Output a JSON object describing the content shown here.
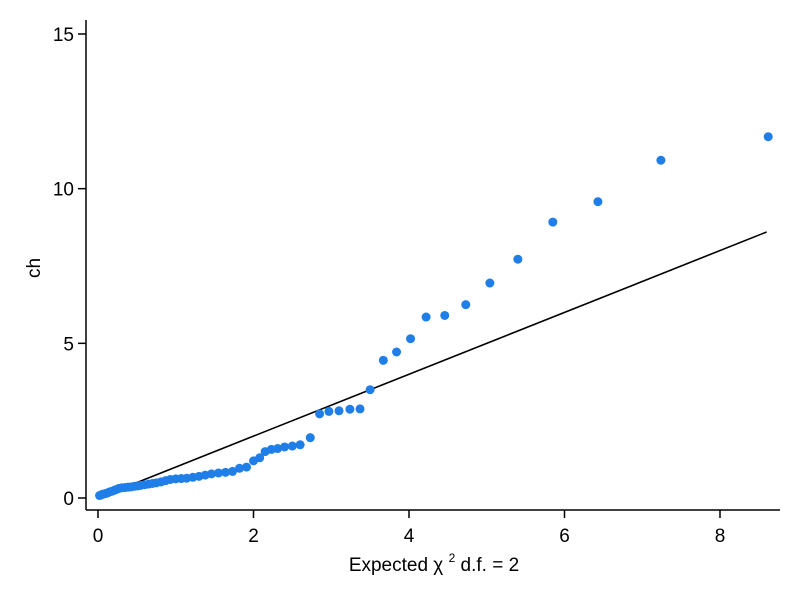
{
  "chart_data": {
    "type": "scatter",
    "title": "",
    "xlabel": "Expected χ",
    "xlabel_superscript": "2",
    "xlabel_suffix": " d.f. = 2",
    "ylabel": "ch",
    "xlim": [
      0,
      8.7
    ],
    "ylim": [
      0,
      15.5
    ],
    "xticks": [
      0,
      2,
      4,
      6,
      8
    ],
    "yticks": [
      0,
      5,
      10,
      15
    ],
    "grid": false,
    "point_color": "#1f7ee8",
    "line_color": "#000000",
    "reference_line": {
      "x": [
        0.02,
        8.6
      ],
      "y": [
        0.02,
        8.6
      ]
    },
    "points": [
      {
        "x": 0.02,
        "y": 0.08
      },
      {
        "x": 0.04,
        "y": 0.1
      },
      {
        "x": 0.06,
        "y": 0.12
      },
      {
        "x": 0.09,
        "y": 0.14
      },
      {
        "x": 0.12,
        "y": 0.16
      },
      {
        "x": 0.15,
        "y": 0.2
      },
      {
        "x": 0.18,
        "y": 0.22
      },
      {
        "x": 0.21,
        "y": 0.25
      },
      {
        "x": 0.24,
        "y": 0.28
      },
      {
        "x": 0.27,
        "y": 0.31
      },
      {
        "x": 0.31,
        "y": 0.33
      },
      {
        "x": 0.35,
        "y": 0.34
      },
      {
        "x": 0.39,
        "y": 0.35
      },
      {
        "x": 0.43,
        "y": 0.36
      },
      {
        "x": 0.47,
        "y": 0.38
      },
      {
        "x": 0.51,
        "y": 0.39
      },
      {
        "x": 0.55,
        "y": 0.41
      },
      {
        "x": 0.6,
        "y": 0.43
      },
      {
        "x": 0.65,
        "y": 0.45
      },
      {
        "x": 0.7,
        "y": 0.47
      },
      {
        "x": 0.75,
        "y": 0.49
      },
      {
        "x": 0.81,
        "y": 0.52
      },
      {
        "x": 0.87,
        "y": 0.56
      },
      {
        "x": 0.93,
        "y": 0.6
      },
      {
        "x": 1.0,
        "y": 0.62
      },
      {
        "x": 1.07,
        "y": 0.63
      },
      {
        "x": 1.14,
        "y": 0.64
      },
      {
        "x": 1.22,
        "y": 0.67
      },
      {
        "x": 1.3,
        "y": 0.7
      },
      {
        "x": 1.38,
        "y": 0.74
      },
      {
        "x": 1.46,
        "y": 0.78
      },
      {
        "x": 1.55,
        "y": 0.81
      },
      {
        "x": 1.64,
        "y": 0.83
      },
      {
        "x": 1.73,
        "y": 0.86
      },
      {
        "x": 1.82,
        "y": 0.96
      },
      {
        "x": 1.91,
        "y": 1.0
      },
      {
        "x": 2.0,
        "y": 1.2
      },
      {
        "x": 2.08,
        "y": 1.3
      },
      {
        "x": 2.15,
        "y": 1.5
      },
      {
        "x": 2.23,
        "y": 1.57
      },
      {
        "x": 2.31,
        "y": 1.6
      },
      {
        "x": 2.4,
        "y": 1.65
      },
      {
        "x": 2.5,
        "y": 1.68
      },
      {
        "x": 2.6,
        "y": 1.72
      },
      {
        "x": 2.73,
        "y": 1.95
      },
      {
        "x": 2.85,
        "y": 2.72
      },
      {
        "x": 2.97,
        "y": 2.8
      },
      {
        "x": 3.1,
        "y": 2.82
      },
      {
        "x": 3.24,
        "y": 2.87
      },
      {
        "x": 3.37,
        "y": 2.88
      },
      {
        "x": 3.5,
        "y": 3.5
      },
      {
        "x": 3.67,
        "y": 4.45
      },
      {
        "x": 3.84,
        "y": 4.72
      },
      {
        "x": 4.02,
        "y": 5.15
      },
      {
        "x": 4.22,
        "y": 5.85
      },
      {
        "x": 4.46,
        "y": 5.9
      },
      {
        "x": 4.73,
        "y": 6.25
      },
      {
        "x": 5.04,
        "y": 6.95
      },
      {
        "x": 5.4,
        "y": 7.72
      },
      {
        "x": 5.85,
        "y": 8.92
      },
      {
        "x": 6.43,
        "y": 9.58
      },
      {
        "x": 7.24,
        "y": 10.92
      },
      {
        "x": 8.62,
        "y": 11.68
      }
    ]
  }
}
